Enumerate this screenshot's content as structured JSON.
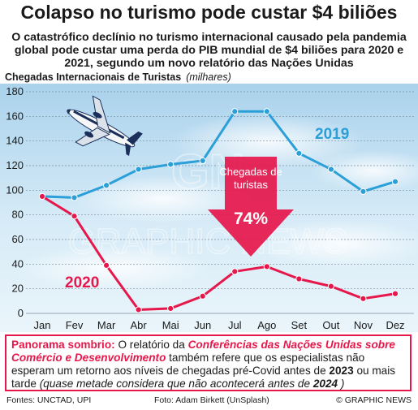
{
  "title": "Colapso no turismo pode custar $4 biliões",
  "subtitle": "O catastrófico declínio no turismo internacional causado pela pandemia global pode custar uma perda do PIB mundial de $4 biliões para 2020 e 2021, segundo um novo relatório das Nações Unidas",
  "chart_data": {
    "type": "line",
    "title": "Chegadas Internacionais de Turistas",
    "units": "(milhares)",
    "categories": [
      "Jan",
      "Fev",
      "Mar",
      "Abr",
      "Mai",
      "Jun",
      "Jul",
      "Ago",
      "Set",
      "Out",
      "Nov",
      "Dez"
    ],
    "yticks": [
      0,
      20,
      40,
      60,
      80,
      100,
      120,
      140,
      160,
      180
    ],
    "ylim": [
      0,
      180
    ],
    "grid": true,
    "series": [
      {
        "name": "2019",
        "color": "#2b9fd8",
        "values": [
          95,
          94,
          104,
          117,
          121,
          124,
          164,
          164,
          130,
          117,
          99,
          107
        ]
      },
      {
        "name": "2020",
        "color": "#e6174b",
        "values": [
          95,
          79,
          39,
          3,
          4,
          14,
          34,
          38,
          28,
          22,
          12,
          16
        ]
      }
    ],
    "annotation": {
      "label": "Chegadas de turistas",
      "value": "74%"
    },
    "watermark": "GRAPHIC NEWS"
  },
  "note": {
    "lead": "Panorama sombrio:",
    "t1": " O relatório da ",
    "org": "Conferências das Nações Unidas sobre Comércio e Desenvolvimento",
    "t2": " também refere que os especialistas não esperam um retorno aos níveis de chegadas pré-Covid antes de ",
    "y1": "2023",
    "t3": " ou mais tarde ",
    "paren": "(quase metade considera que não acontecerá antes de ",
    "y2": "2024",
    "close": " )"
  },
  "footer": {
    "sources": "Fontes: UNCTAD, UPI",
    "photo": "Foto: Adam Birkett (UnSplash)",
    "credit": "© GRAPHIC NEWS"
  }
}
